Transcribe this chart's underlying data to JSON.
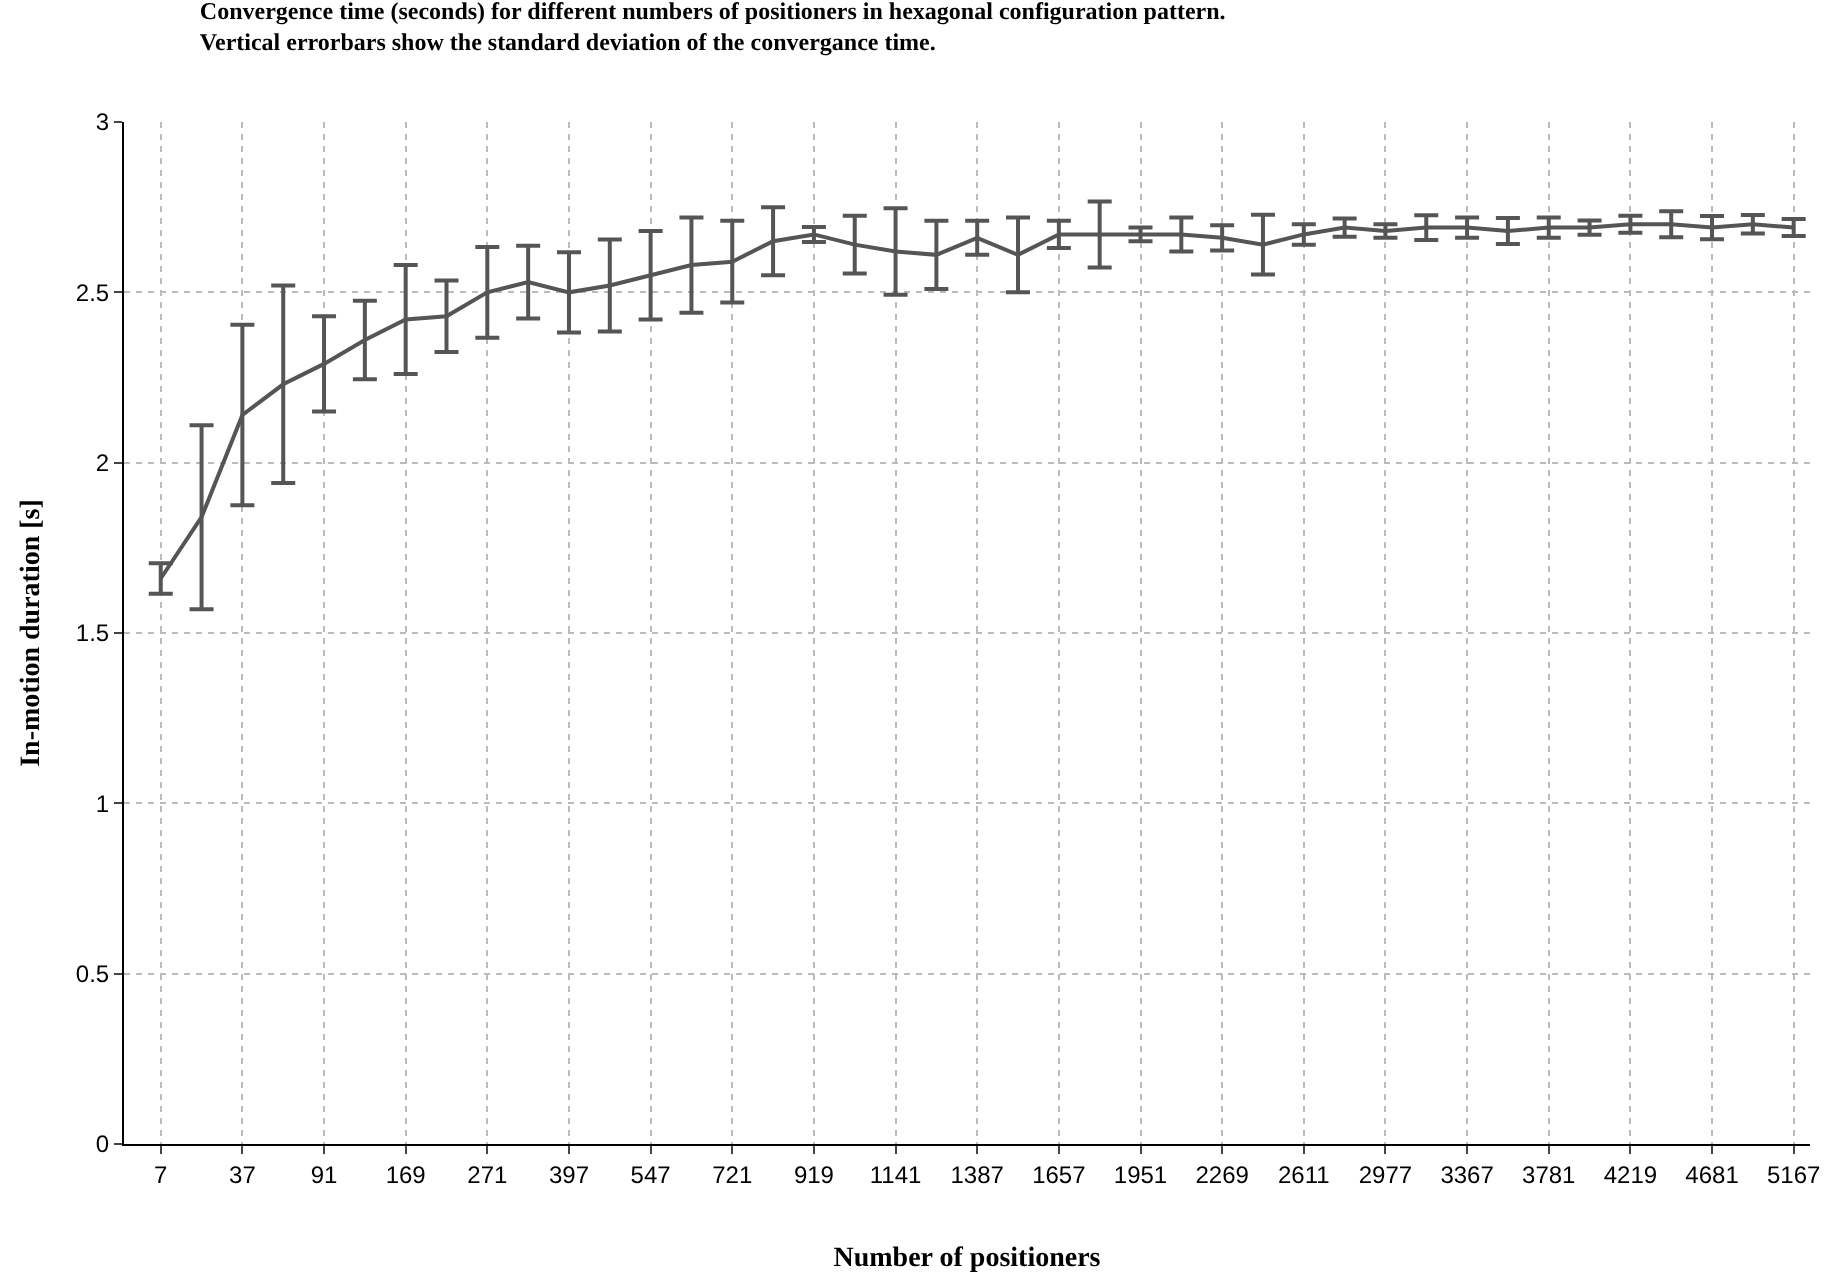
{
  "chart_data": {
    "type": "line",
    "title": "Convergence time (seconds) for different numbers of positioners in hexagonal configuration pattern.\nVertical errorbars show the standard deviation of the convergance time.",
    "xlabel": "Number of positioners",
    "ylabel": "In-motion duration [s]",
    "categories": [
      "7",
      null,
      "37",
      null,
      "91",
      null,
      "169",
      null,
      "271",
      null,
      "397",
      null,
      "547",
      null,
      "721",
      null,
      "919",
      null,
      "1141",
      null,
      "1387",
      null,
      "1657",
      null,
      "1951",
      null,
      "2269",
      null,
      "2611",
      null,
      "2977",
      null,
      "3367",
      null,
      "3781",
      null,
      "4219",
      null,
      "4681",
      null,
      "5167"
    ],
    "series": [
      {
        "color": "#555555",
        "values": [
          1.66,
          1.84,
          2.14,
          2.23,
          2.29,
          2.36,
          2.42,
          2.43,
          2.5,
          2.53,
          2.5,
          2.52,
          2.55,
          2.58,
          2.59,
          2.65,
          2.67,
          2.64,
          2.62,
          2.61,
          2.66,
          2.61,
          2.67,
          2.67,
          2.67,
          2.67,
          2.66,
          2.64,
          2.67,
          2.69,
          2.68,
          2.69,
          2.69,
          2.68,
          2.69,
          2.69,
          2.7,
          2.7,
          2.69,
          2.7,
          2.69
        ],
        "errors": [
          0.045,
          0.27,
          0.265,
          0.29,
          0.14,
          0.115,
          0.16,
          0.105,
          0.133,
          0.107,
          0.118,
          0.135,
          0.13,
          0.14,
          0.12,
          0.1,
          0.022,
          0.085,
          0.127,
          0.1,
          0.05,
          0.11,
          0.04,
          0.097,
          0.02,
          0.05,
          0.037,
          0.088,
          0.03,
          0.027,
          0.02,
          0.036,
          0.03,
          0.038,
          0.03,
          0.021,
          0.025,
          0.038,
          0.034,
          0.027,
          0.025
        ]
      }
    ],
    "ylim": [
      0,
      3
    ],
    "yticks": [
      0,
      0.5,
      1,
      1.5,
      2,
      2.5,
      3
    ],
    "grid": true,
    "marker": "none",
    "line_style": "solid"
  }
}
